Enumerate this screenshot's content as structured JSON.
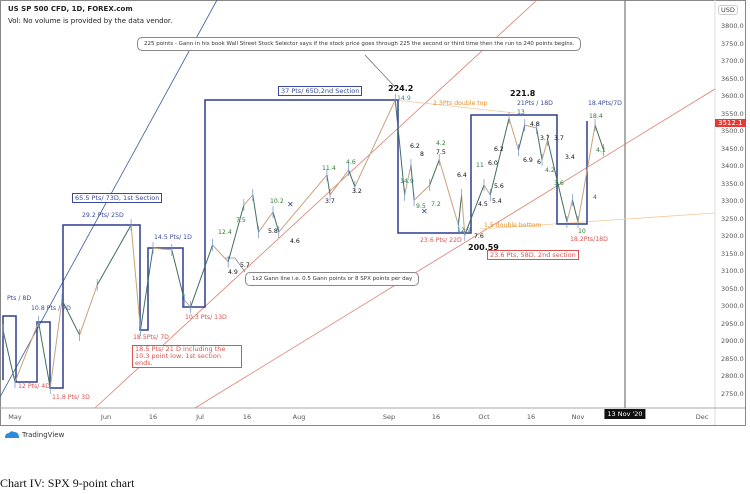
{
  "header": {
    "title": "US SP 500 CFD, 1D, FOREX.com",
    "volume_note": "Vol: No volume is provided by the data vendor."
  },
  "price_axis": {
    "currency": "USD",
    "last_price": "3512.1",
    "last_price_color": "#e53935"
  },
  "time_axis": {
    "labels": [
      "May",
      "Jun",
      "16",
      "Jul",
      "16",
      "Aug",
      "Sep",
      "16",
      "Oct",
      "16",
      "Nov",
      "13 Nov '20",
      "Dec"
    ]
  },
  "callouts": {
    "gann_225": "225 points - Gann in his book Wall Street Stock Selector says if the stock price goes through 225 the second or third time then the run to 240 points begins.",
    "gann_1x2": "1x2 Gann line i.e. 0.5 Gann points or 8 SPX points per day"
  },
  "section_boxes": {
    "first": "65.5 Pts/ 73D, 1st Section",
    "second": "37 Pts/ 65D,2nd Section",
    "second_end": "23.6 Pts, 58D, 2nd section",
    "first_end": "18.5 Pts/ 21 D including the 10.3 point low, 1st section ends."
  },
  "annotations": [
    {
      "text": "224.2",
      "color": "#111"
    },
    {
      "text": "14.9",
      "color": "#3a8a8a"
    },
    {
      "text": "2.3Pts double top",
      "color": "#e0912f"
    },
    {
      "text": "221.8",
      "color": "#111"
    },
    {
      "text": "21Pts / 18D",
      "color": "#3b4a9c"
    },
    {
      "text": "18.4Pts/7D",
      "color": "#3b4a9c"
    },
    {
      "text": "18.4",
      "color": "#2e7d32"
    },
    {
      "text": "4.1",
      "color": "#2e7d32"
    },
    {
      "text": "13",
      "color": "#2e7d32"
    },
    {
      "text": "4.8",
      "color": "#111"
    },
    {
      "text": "3.7",
      "color": "#111"
    },
    {
      "text": "3.7",
      "color": "#111"
    },
    {
      "text": "3.4",
      "color": "#111"
    },
    {
      "text": "6.9",
      "color": "#111"
    },
    {
      "text": "6",
      "color": "#111"
    },
    {
      "text": "4.2",
      "color": "#2e7d32"
    },
    {
      "text": "3.6",
      "color": "#2e7d32"
    },
    {
      "text": "4",
      "color": "#2e7d32"
    },
    {
      "text": "10",
      "color": "#2e7d32"
    },
    {
      "text": "18.2Pts/18D",
      "color": "#d9534f"
    },
    {
      "text": "6.2",
      "color": "#111"
    },
    {
      "text": "8",
      "color": "#111"
    },
    {
      "text": "14.9",
      "color": "#2e7d6a"
    },
    {
      "text": "9.5",
      "color": "#2e7d32"
    },
    {
      "text": "7.2",
      "color": "#2e7d32"
    },
    {
      "text": "4.2",
      "color": "#2e7d32"
    },
    {
      "text": "7.5",
      "color": "#111"
    },
    {
      "text": "6.4",
      "color": "#111"
    },
    {
      "text": "12.9",
      "color": "#2e7d6a"
    },
    {
      "text": "7.6",
      "color": "#111"
    },
    {
      "text": "200.59",
      "color": "#111"
    },
    {
      "text": "23.6 Pts/ 22D",
      "color": "#d9534f"
    },
    {
      "text": "1.5 double bottom",
      "color": "#e0912f"
    },
    {
      "text": "6.2",
      "color": "#111"
    },
    {
      "text": "11",
      "color": "#2e7d32"
    },
    {
      "text": "6.0",
      "color": "#111"
    },
    {
      "text": "4.5",
      "color": "#111"
    },
    {
      "text": "5.4",
      "color": "#111"
    },
    {
      "text": "5.6",
      "color": "#111"
    },
    {
      "text": "11.4",
      "color": "#2e7d32"
    },
    {
      "text": "4.6",
      "color": "#2e7d32"
    },
    {
      "text": "3.2",
      "color": "#111"
    },
    {
      "text": "3.7",
      "color": "#111"
    },
    {
      "text": "10.2",
      "color": "#2e7d32"
    },
    {
      "text": "5.8",
      "color": "#111"
    },
    {
      "text": "4.6",
      "color": "#111"
    },
    {
      "text": "7.5",
      "color": "#2e7d32"
    },
    {
      "text": "12.4",
      "color": "#2e7d32"
    },
    {
      "text": "4.9",
      "color": "#111"
    },
    {
      "text": "5.7",
      "color": "#111"
    },
    {
      "text": "29.2 Pts/ 25D",
      "color": "#3b4a9c"
    },
    {
      "text": "14.5 Pts/ 1D",
      "color": "#3b4a9c"
    },
    {
      "text": "Pts / 8D",
      "color": "#3b4a9c"
    },
    {
      "text": "10.8 Pts / 7D",
      "color": "#3b4a9c"
    },
    {
      "text": "18.5Pts/ 7D",
      "color": "#d9534f"
    },
    {
      "text": "10.3 Pts/ 13D",
      "color": "#d9534f"
    },
    {
      "text": "12 Pts/ 4D",
      "color": "#d9534f"
    },
    {
      "text": "11.8 Pts/ 3D",
      "color": "#d9534f"
    }
  ],
  "branding": {
    "logo_text": "TradingView"
  },
  "caption": "Chart IV: SPX 9-point chart",
  "chart_data": {
    "type": "line",
    "title": "US SP 500 CFD, 1D, FOREX.com",
    "y_ticks": [
      3800,
      3750,
      3700,
      3650,
      3600,
      3550,
      3500,
      3450,
      3400,
      3350,
      3300,
      3250,
      3200,
      3150,
      3100,
      3050,
      3000,
      2950,
      2900,
      2850,
      2800,
      2750
    ],
    "ylim": [
      2700,
      3850
    ],
    "x_range": [
      "2020-04-27",
      "2020-12-05"
    ],
    "grid": false,
    "series": [
      {
        "style": "9-point swing line",
        "points": [
          [
            "2020-04-27",
            2932
          ],
          [
            "2020-05-01",
            2784
          ],
          [
            "2020-05-09",
            2955
          ],
          [
            "2020-05-13",
            2767
          ],
          [
            "2020-05-17",
            3018
          ],
          [
            "2020-05-23",
            2918
          ],
          [
            "2020-05-29",
            3061
          ],
          [
            "2020-06-09",
            3232
          ],
          [
            "2020-06-12",
            2932
          ],
          [
            "2020-06-16",
            3166
          ],
          [
            "2020-06-22",
            3161
          ],
          [
            "2020-06-26",
            3018
          ],
          [
            "2020-06-28",
            2998
          ],
          [
            "2020-07-05",
            3175
          ],
          [
            "2020-07-10",
            3127
          ],
          [
            "2020-07-15",
            3289
          ],
          [
            "2020-07-18",
            3318
          ],
          [
            "2020-07-20",
            3212
          ],
          [
            "2020-07-25",
            3269
          ],
          [
            "2020-07-27",
            3212
          ],
          [
            "2020-08-12",
            3375
          ],
          [
            "2020-08-13",
            3318
          ],
          [
            "2020-08-19",
            3389
          ],
          [
            "2020-08-21",
            3341
          ],
          [
            "2020-09-03",
            3589
          ],
          [
            "2020-09-06",
            3318
          ],
          [
            "2020-09-08",
            3403
          ],
          [
            "2020-09-09",
            3303
          ],
          [
            "2020-09-14",
            3346
          ],
          [
            "2020-09-17",
            3418
          ],
          [
            "2020-09-23",
            3232
          ],
          [
            "2020-09-24",
            3318
          ],
          [
            "2020-09-25",
            3204
          ],
          [
            "2020-10-01",
            3346
          ],
          [
            "2020-10-03",
            3318
          ],
          [
            "2020-10-09",
            3537
          ],
          [
            "2020-10-12",
            3446
          ],
          [
            "2020-10-14",
            3517
          ],
          [
            "2020-10-18",
            3509
          ],
          [
            "2020-10-20",
            3418
          ],
          [
            "2020-10-22",
            3475
          ],
          [
            "2020-10-29",
            3241
          ],
          [
            "2020-10-31",
            3303
          ],
          [
            "2020-11-02",
            3241
          ],
          [
            "2020-11-06",
            3517
          ],
          [
            "2020-11-08",
            3446
          ]
        ]
      }
    ],
    "colors": {
      "swing_line": "#3f6f5f",
      "boxes": "#2f3f8f",
      "trend_lines": "#d9826f",
      "steep_line": "#3b5a9c",
      "double_lines": "#f2c99a"
    }
  }
}
